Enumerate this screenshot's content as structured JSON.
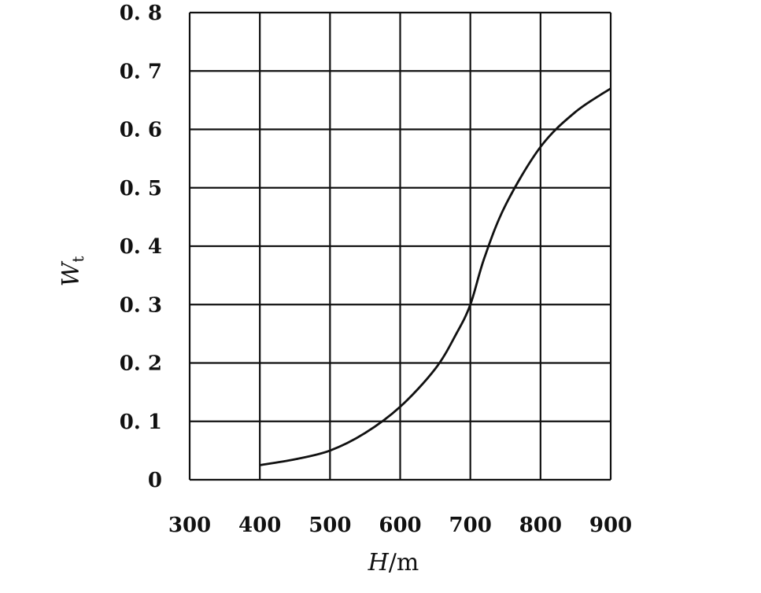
{
  "chart_data": {
    "type": "line",
    "xlabel": {
      "symbol": "H",
      "unit": "/m"
    },
    "ylabel": {
      "symbol": "W",
      "subscript": "t"
    },
    "xlim": [
      300,
      900
    ],
    "ylim": [
      0,
      0.8
    ],
    "grid": true,
    "x_ticks": [
      "300",
      "400",
      "500",
      "600",
      "700",
      "800",
      "900"
    ],
    "y_ticks": [
      "0",
      "0. 1",
      "0. 2",
      "0. 3",
      "0. 4",
      "0. 5",
      "0. 6",
      "0. 7",
      "0. 8"
    ],
    "series": [
      {
        "x": [
          400,
          450,
          500,
          550,
          600,
          650,
          680,
          700,
          720,
          750,
          800,
          850,
          900
        ],
        "y": [
          0.025,
          0.035,
          0.05,
          0.08,
          0.125,
          0.19,
          0.25,
          0.3,
          0.38,
          0.47,
          0.57,
          0.63,
          0.67
        ],
        "color": "#111111"
      }
    ]
  }
}
